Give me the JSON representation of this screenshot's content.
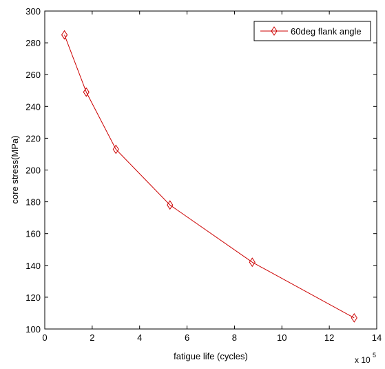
{
  "chart_data": {
    "type": "line",
    "xlabel": "fatigue life (cycles)",
    "ylabel": "core stress(MPa)",
    "x_multiplier_label": "x 10",
    "x_multiplier_exponent": "5",
    "xlim": [
      0,
      14
    ],
    "ylim": [
      100,
      300
    ],
    "xticks": [
      "0",
      "2",
      "4",
      "6",
      "8",
      "10",
      "12",
      "14"
    ],
    "yticks": [
      "100",
      "120",
      "140",
      "160",
      "180",
      "200",
      "220",
      "240",
      "260",
      "280",
      "300"
    ],
    "grid": false,
    "legend_position": "top-right",
    "series": [
      {
        "name": "60deg flank angle",
        "color": "#cc0000",
        "marker": "diamond",
        "x": [
          0.83,
          1.75,
          3.0,
          5.28,
          8.75,
          13.05
        ],
        "y": [
          285,
          249,
          213,
          178,
          142,
          107
        ]
      }
    ]
  }
}
